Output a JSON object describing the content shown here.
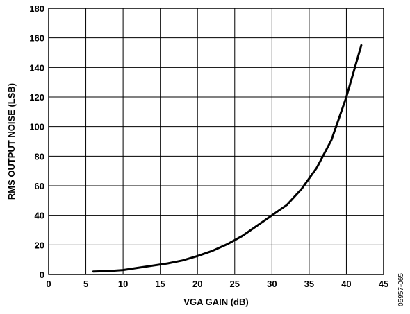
{
  "chart_data": {
    "type": "line",
    "xlabel": "VGA GAIN (dB)",
    "ylabel": "RMS OUTPUT NOISE (LSB)",
    "xlim": [
      0,
      45
    ],
    "ylim": [
      0,
      180
    ],
    "x_ticks": [
      "0",
      "5",
      "10",
      "15",
      "20",
      "25",
      "30",
      "35",
      "40",
      "45"
    ],
    "y_ticks": [
      "0",
      "20",
      "40",
      "60",
      "80",
      "100",
      "120",
      "140",
      "160",
      "180"
    ],
    "grid": true,
    "line_color": "#000000",
    "series": [
      {
        "x": [
          6,
          8,
          10,
          12,
          14,
          16,
          18,
          20,
          22,
          24,
          26,
          28,
          30,
          32,
          34,
          36,
          38,
          40,
          42
        ],
        "y": [
          2,
          2.3,
          3,
          4.5,
          6,
          7.5,
          9.5,
          12.5,
          16,
          20.5,
          26,
          33,
          40,
          47,
          58,
          72,
          91,
          120,
          155
        ]
      }
    ],
    "figure_id": "05957-065"
  }
}
